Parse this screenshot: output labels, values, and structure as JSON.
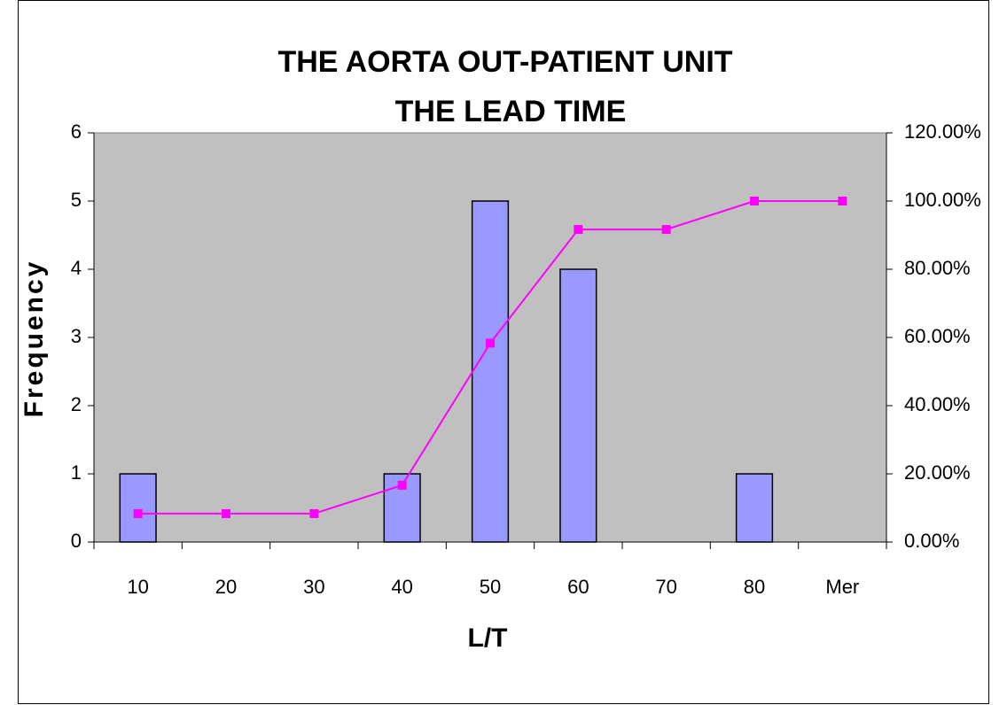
{
  "chart_data": {
    "type": "bar",
    "title": "THE AORTA OUT-PATIENT UNIT",
    "subtitle": "THE LEAD TIME",
    "x_label": "L/T",
    "y_label": "Frequency",
    "categories": [
      "10",
      "20",
      "30",
      "40",
      "50",
      "60",
      "70",
      "80",
      "Mer"
    ],
    "series": [
      {
        "type": "bar",
        "color": "#9999ff",
        "values": [
          1,
          0,
          0,
          1,
          5,
          4,
          0,
          1,
          0
        ]
      },
      {
        "type": "line",
        "axis": "y2",
        "color": "#ff00ff",
        "values": [
          8.33,
          8.33,
          8.33,
          16.67,
          58.33,
          91.67,
          91.67,
          100,
          100
        ]
      }
    ],
    "ylim": [
      0,
      6
    ],
    "yticks": [
      0,
      1,
      2,
      3,
      4,
      5,
      6
    ],
    "y2lim": [
      0,
      120
    ],
    "y2ticks": [
      {
        "value": 0,
        "label": "0.00%"
      },
      {
        "value": 20,
        "label": "20.00%"
      },
      {
        "value": 40,
        "label": "40.00%"
      },
      {
        "value": 60,
        "label": "60.00%"
      },
      {
        "value": 80,
        "label": "80.00%"
      },
      {
        "value": 100,
        "label": "100.00%"
      },
      {
        "value": 120,
        "label": "120.00%"
      }
    ],
    "plot_background": "#c0c0c0"
  }
}
